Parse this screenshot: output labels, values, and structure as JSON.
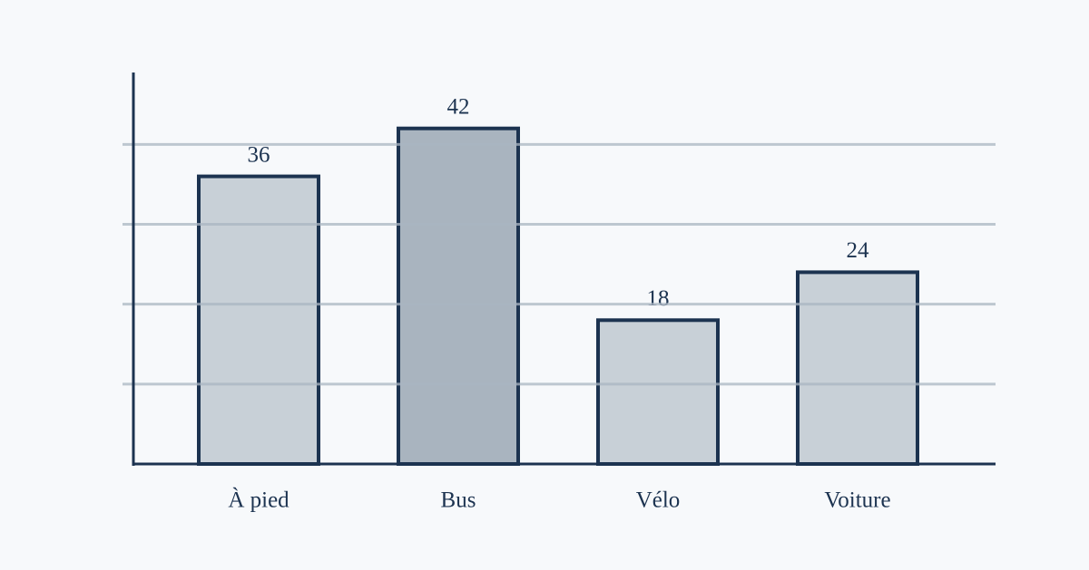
{
  "chart_data": {
    "type": "bar",
    "categories": [
      "À pied",
      "Bus",
      "Vélo",
      "Voiture"
    ],
    "values": [
      36,
      42,
      18,
      24
    ],
    "colors": [
      "#c8d0d7",
      "#a9b4bf",
      "#c8d0d7",
      "#c8d0d7"
    ],
    "ylim": [
      0,
      49
    ],
    "yticks": [
      10,
      20,
      30,
      40
    ],
    "grid": true
  }
}
